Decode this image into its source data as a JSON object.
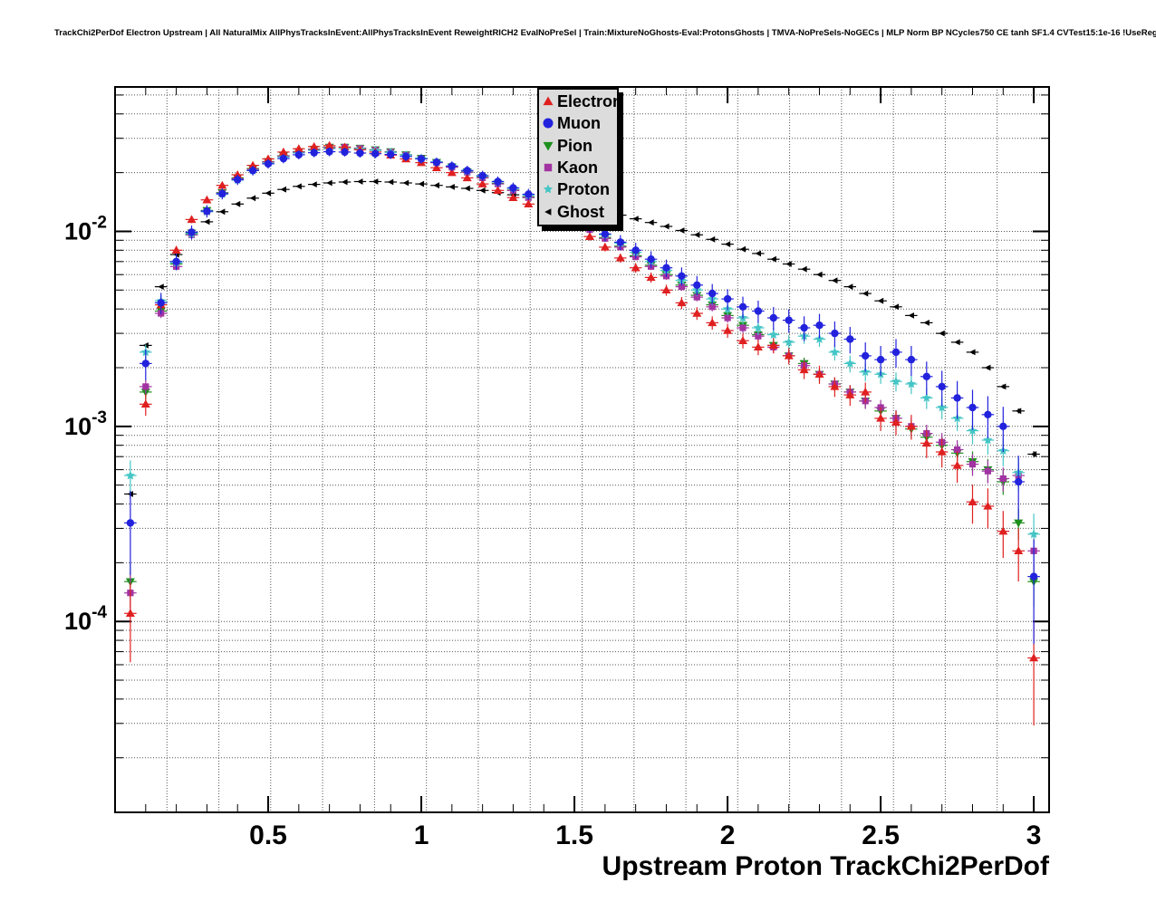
{
  "header": {
    "title": "TrackChi2PerDof Electron Upstream | All NaturalMix AllPhysTracksInEvent:AllPhysTracksInEvent ReweightRICH2 EvalNoPreSel | Train:MixtureNoGhosts-Eval:ProtonsGhosts | TMVA-NoPreSels-NoGECs | MLP Norm BP NCycles750 CE tanh SF1.4 CVTest15:1e-16 !UseReg"
  },
  "axes": {
    "x_label": "Upstream Proton TrackChi2PerDof",
    "x_ticks": [
      {
        "value": 0.5,
        "label": "0.5"
      },
      {
        "value": 1.0,
        "label": "1"
      },
      {
        "value": 1.5,
        "label": "1.5"
      },
      {
        "value": 2.0,
        "label": "2"
      },
      {
        "value": 2.5,
        "label": "2.5"
      },
      {
        "value": 3.0,
        "label": "3"
      }
    ],
    "y_ticks": [
      {
        "value": 0.01,
        "base": "10",
        "exp": "-2"
      },
      {
        "value": 0.001,
        "base": "10",
        "exp": "-3"
      },
      {
        "value": 0.0001,
        "base": "10",
        "exp": "-4"
      }
    ]
  },
  "legend": {
    "fill": "#dcdcdc",
    "entries": [
      {
        "label": "Electron",
        "marker": "triangle-up",
        "color": "#e02020"
      },
      {
        "label": "Muon",
        "marker": "circle",
        "color": "#2222dd"
      },
      {
        "label": "Pion",
        "marker": "triangle-down",
        "color": "#1d8f1d"
      },
      {
        "label": "Kaon",
        "marker": "square",
        "color": "#a233a2"
      },
      {
        "label": "Proton",
        "marker": "star",
        "color": "#45c5c5"
      },
      {
        "label": "Ghost",
        "marker": "triangle-left",
        "color": "#000000"
      }
    ]
  },
  "chart_data": {
    "type": "scatter",
    "title": "TrackChi2PerDof Electron Upstream | All NaturalMix AllPhysTracksInEvent:AllPhysTracksInEvent ReweightRICH2 EvalNoPreSel | Train:MixtureNoGhosts-Eval:ProtonsGhosts | TMVA-NoPreSels-NoGECs | MLP Norm BP NCycles750 CE tanh SF1.4 CVTest15:1e-16 !UseReg",
    "xlabel": "Upstream Proton TrackChi2PerDof",
    "ylabel": "",
    "y_scale": "log",
    "grid": true,
    "legend_position": "top-center",
    "x_range": [
      0,
      3.05
    ],
    "y_range": [
      1.05e-05,
      0.055
    ],
    "x_grid_divisions": 18,
    "x": [
      0.05,
      0.1,
      0.15,
      0.2,
      0.25,
      0.3,
      0.35,
      0.4,
      0.45,
      0.5,
      0.55,
      0.6,
      0.65,
      0.7,
      0.75,
      0.8,
      0.85,
      0.9,
      0.95,
      1.0,
      1.05,
      1.1,
      1.15,
      1.2,
      1.25,
      1.3,
      1.35,
      1.4,
      1.45,
      1.5,
      1.55,
      1.6,
      1.65,
      1.7,
      1.75,
      1.8,
      1.85,
      1.9,
      1.95,
      2.0,
      2.05,
      2.1,
      2.15,
      2.2,
      2.25,
      2.3,
      2.35,
      2.4,
      2.45,
      2.5,
      2.55,
      2.6,
      2.65,
      2.7,
      2.75,
      2.8,
      2.85,
      2.9,
      2.95,
      3.0
    ],
    "series": [
      {
        "name": "Electron",
        "color": "#e02020",
        "marker": "triangle-up",
        "err_scale": 0.028,
        "values": [
          0.00011,
          0.0013,
          0.0042,
          0.008,
          0.0115,
          0.0145,
          0.0172,
          0.0195,
          0.0218,
          0.0235,
          0.0255,
          0.0265,
          0.0272,
          0.0275,
          0.027,
          0.0262,
          0.0255,
          0.0246,
          0.0235,
          0.0225,
          0.0212,
          0.02,
          0.0188,
          0.0175,
          0.0162,
          0.0149,
          0.0138,
          0.0126,
          0.0115,
          0.0105,
          0.0094,
          0.0083,
          0.0073,
          0.0065,
          0.0058,
          0.005,
          0.0043,
          0.0038,
          0.0034,
          0.0031,
          0.00275,
          0.00255,
          0.0026,
          0.0023,
          0.00195,
          0.00185,
          0.0016,
          0.00145,
          0.0015,
          0.0011,
          0.00105,
          0.001,
          0.00082,
          0.00074,
          0.00063,
          0.00041,
          0.00039,
          0.00029,
          0.00023,
          6.5e-05
        ]
      },
      {
        "name": "Muon",
        "color": "#2222dd",
        "marker": "circle",
        "err_scale": 0.05,
        "values": [
          0.00032,
          0.0021,
          0.0043,
          0.007,
          0.0099,
          0.0127,
          0.0156,
          0.0184,
          0.0205,
          0.0222,
          0.0236,
          0.0247,
          0.0253,
          0.0256,
          0.0255,
          0.0252,
          0.025,
          0.0248,
          0.0242,
          0.0235,
          0.0226,
          0.0216,
          0.0205,
          0.0193,
          0.018,
          0.0167,
          0.0155,
          0.0143,
          0.013,
          0.0118,
          0.0107,
          0.0097,
          0.0088,
          0.008,
          0.0072,
          0.0065,
          0.0059,
          0.0053,
          0.0048,
          0.0045,
          0.0041,
          0.0039,
          0.0036,
          0.0035,
          0.0032,
          0.0033,
          0.003,
          0.0028,
          0.0023,
          0.0022,
          0.0024,
          0.0022,
          0.0018,
          0.0016,
          0.0014,
          0.00125,
          0.00115,
          0.001,
          0.00052,
          0.00017
        ]
      },
      {
        "name": "Pion",
        "color": "#1d8f1d",
        "marker": "triangle-down",
        "err_scale": 0.02,
        "values": [
          0.00016,
          0.0015,
          0.0039,
          0.0068,
          0.0098,
          0.0128,
          0.0158,
          0.0188,
          0.021,
          0.0228,
          0.0244,
          0.0256,
          0.0264,
          0.027,
          0.027,
          0.0267,
          0.0262,
          0.0256,
          0.0247,
          0.0237,
          0.0226,
          0.0214,
          0.0202,
          0.0189,
          0.0176,
          0.0163,
          0.015,
          0.0138,
          0.0126,
          0.0114,
          0.0103,
          0.0093,
          0.0084,
          0.0075,
          0.0067,
          0.006,
          0.0053,
          0.0047,
          0.0042,
          0.0037,
          0.0033,
          0.00295,
          0.0026,
          0.0023,
          0.0021,
          0.00185,
          0.00165,
          0.0015,
          0.00135,
          0.0012,
          0.0011,
          0.00097,
          0.00088,
          0.0008,
          0.00073,
          0.00066,
          0.0006,
          0.00052,
          0.00032,
          0.00016
        ]
      },
      {
        "name": "Kaon",
        "color": "#a233a2",
        "marker": "square",
        "err_scale": 0.02,
        "values": [
          0.00014,
          0.0016,
          0.0038,
          0.0066,
          0.0096,
          0.0126,
          0.0157,
          0.0186,
          0.0208,
          0.0227,
          0.0243,
          0.0255,
          0.0263,
          0.0269,
          0.027,
          0.0266,
          0.0261,
          0.0255,
          0.0246,
          0.0236,
          0.0225,
          0.0213,
          0.0201,
          0.0188,
          0.0175,
          0.0162,
          0.0149,
          0.0137,
          0.0125,
          0.0113,
          0.0102,
          0.0092,
          0.0083,
          0.0074,
          0.0066,
          0.0059,
          0.0052,
          0.0046,
          0.0041,
          0.0036,
          0.0032,
          0.0029,
          0.00255,
          0.0023,
          0.00205,
          0.00185,
          0.00165,
          0.0015,
          0.00135,
          0.00125,
          0.0011,
          0.001,
          0.00092,
          0.00083,
          0.00076,
          0.00064,
          0.00059,
          0.00054,
          0.00056,
          0.00023
        ]
      },
      {
        "name": "Proton",
        "color": "#45c5c5",
        "marker": "star",
        "err_scale": 0.028,
        "values": [
          0.00056,
          0.0024,
          0.0044,
          0.0069,
          0.0097,
          0.0126,
          0.0155,
          0.0183,
          0.0205,
          0.0224,
          0.024,
          0.0252,
          0.026,
          0.0265,
          0.0266,
          0.0264,
          0.026,
          0.0254,
          0.0246,
          0.0237,
          0.0227,
          0.0216,
          0.0204,
          0.0192,
          0.0179,
          0.0166,
          0.0153,
          0.0141,
          0.0129,
          0.0117,
          0.0106,
          0.0096,
          0.0087,
          0.0078,
          0.007,
          0.0063,
          0.0056,
          0.005,
          0.0045,
          0.004,
          0.0036,
          0.0032,
          0.00295,
          0.0027,
          0.0029,
          0.0028,
          0.0024,
          0.0021,
          0.0019,
          0.00185,
          0.0017,
          0.00165,
          0.0014,
          0.00125,
          0.0011,
          0.00095,
          0.00085,
          0.00075,
          0.00058,
          0.00028
        ]
      },
      {
        "name": "Ghost",
        "color": "#000000",
        "marker": "triangle-left",
        "err_scale": 0.006,
        "values": [
          0.00045,
          0.0026,
          0.0052,
          0.0076,
          0.0096,
          0.0112,
          0.0126,
          0.0138,
          0.0148,
          0.0157,
          0.0164,
          0.017,
          0.0174,
          0.0177,
          0.0179,
          0.018,
          0.018,
          0.0179,
          0.0177,
          0.0175,
          0.0172,
          0.0169,
          0.0166,
          0.0162,
          0.0158,
          0.0154,
          0.015,
          0.0145,
          0.0141,
          0.0136,
          0.0131,
          0.0126,
          0.0121,
          0.0116,
          0.0111,
          0.0106,
          0.0101,
          0.0096,
          0.0091,
          0.0086,
          0.0081,
          0.0077,
          0.0072,
          0.0068,
          0.0064,
          0.006,
          0.0056,
          0.0052,
          0.0048,
          0.0044,
          0.0041,
          0.0037,
          0.0034,
          0.003,
          0.0027,
          0.0024,
          0.002,
          0.0016,
          0.0012,
          0.00072
        ]
      }
    ]
  }
}
